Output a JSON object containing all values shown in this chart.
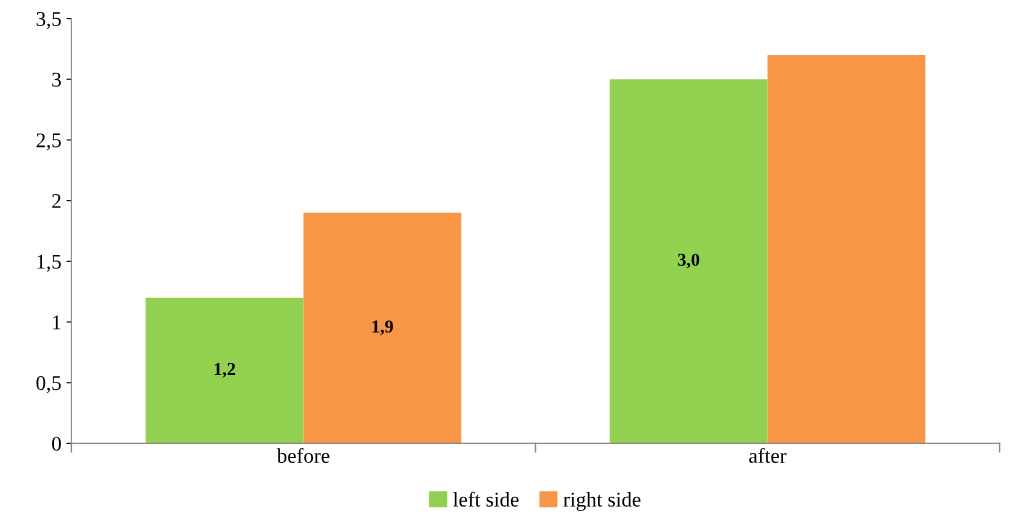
{
  "chart_data": {
    "type": "bar",
    "categories": [
      "before",
      "after"
    ],
    "series": [
      {
        "name": "left side",
        "color": "#92d050",
        "values": [
          1.2,
          3.0
        ],
        "value_labels": [
          "1,2",
          "3,0"
        ]
      },
      {
        "name": "right side",
        "color": "#f79646",
        "values": [
          1.9,
          3.2
        ],
        "value_labels": [
          "1,9",
          null
        ]
      }
    ],
    "ylim": [
      0,
      3.5
    ],
    "yticks": [
      0,
      {
        "value": 0.5,
        "label": "0,5"
      },
      1,
      {
        "value": 1.5,
        "label": "1,5"
      },
      2,
      {
        "value": 2.5,
        "label": "2,5"
      },
      3,
      {
        "value": 3.5,
        "label": "3,5"
      }
    ],
    "grid": false,
    "legend": "bottom"
  }
}
